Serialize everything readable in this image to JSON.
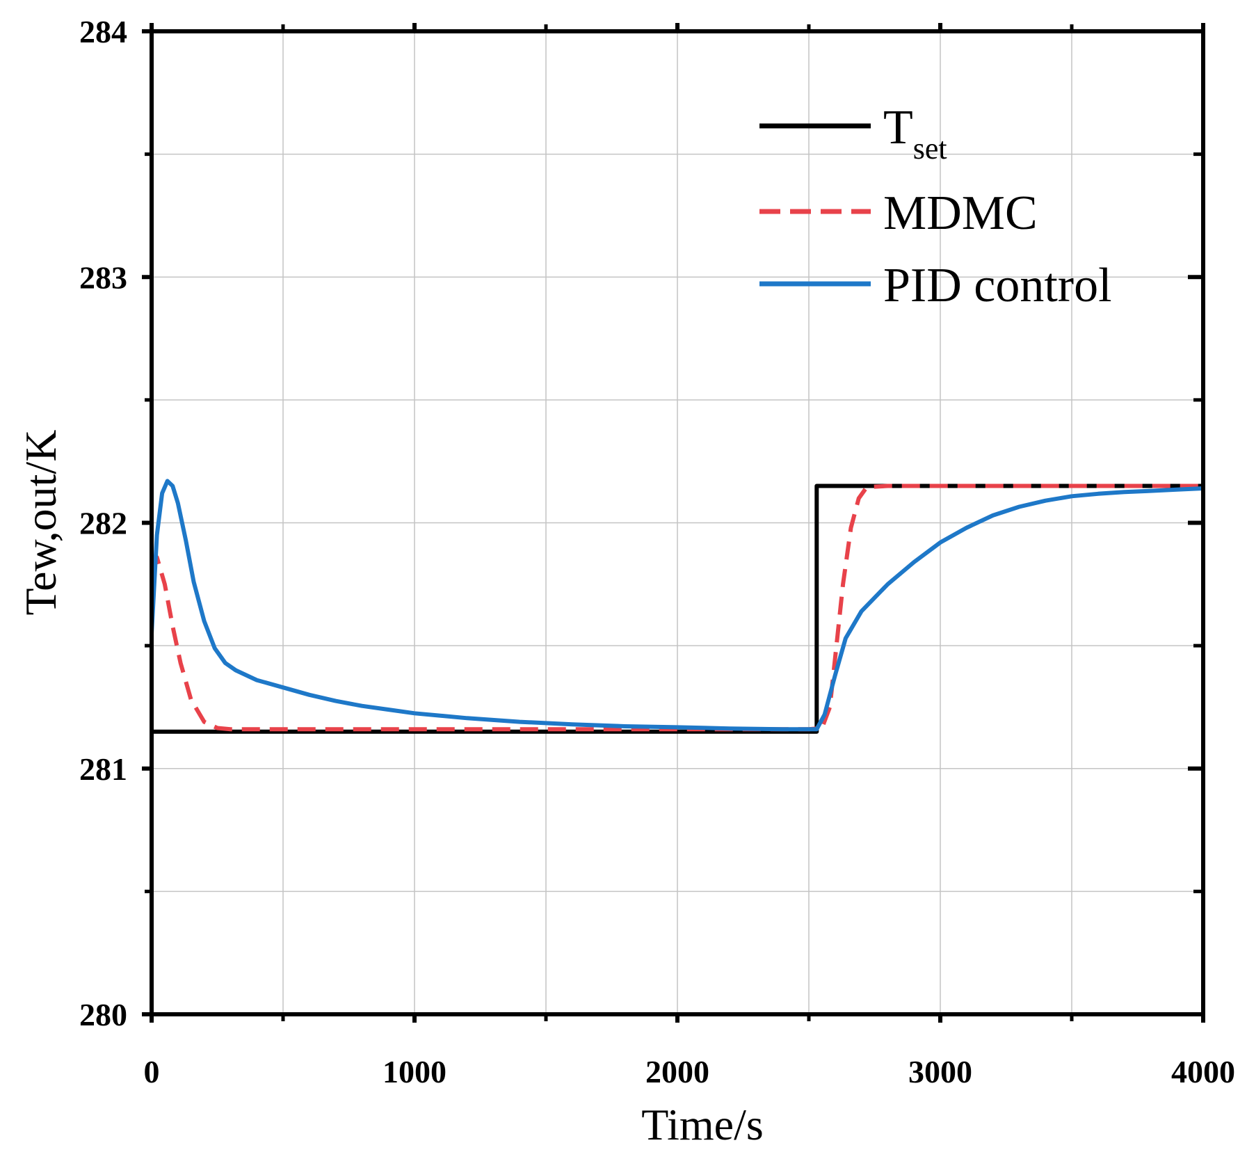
{
  "chart_data": {
    "type": "line",
    "title": "",
    "xlabel": "Time/s",
    "ylabel": "Tew,out/K",
    "xlim": [
      0,
      4000
    ],
    "ylim": [
      280,
      284
    ],
    "xticks": [
      0,
      1000,
      2000,
      3000,
      4000
    ],
    "xticks_minor": [
      500,
      1500,
      2500,
      3500
    ],
    "yticks": [
      280,
      281,
      282,
      283,
      284
    ],
    "yticks_minor": [
      280.5,
      281.5,
      282.5,
      283.5
    ],
    "grid": true,
    "legend_position": "top-right",
    "series": [
      {
        "name": "T",
        "name_sub": "set",
        "color": "#000000",
        "style": "solid",
        "points": [
          [
            0,
            281.15
          ],
          [
            2530,
            281.15
          ],
          [
            2530,
            282.15
          ],
          [
            4000,
            282.15
          ]
        ]
      },
      {
        "name": "MDMC",
        "color": "#e8424a",
        "style": "dashed",
        "points": [
          [
            0,
            281.82
          ],
          [
            20,
            281.86
          ],
          [
            50,
            281.75
          ],
          [
            80,
            281.58
          ],
          [
            110,
            281.43
          ],
          [
            150,
            281.28
          ],
          [
            200,
            281.19
          ],
          [
            250,
            281.165
          ],
          [
            300,
            281.16
          ],
          [
            1000,
            281.16
          ],
          [
            2000,
            281.16
          ],
          [
            2500,
            281.16
          ],
          [
            2550,
            281.165
          ],
          [
            2580,
            281.25
          ],
          [
            2600,
            281.45
          ],
          [
            2630,
            281.75
          ],
          [
            2660,
            281.98
          ],
          [
            2690,
            282.1
          ],
          [
            2720,
            282.145
          ],
          [
            2800,
            282.15
          ],
          [
            4000,
            282.15
          ]
        ]
      },
      {
        "name": "PID control",
        "color": "#1e78c8",
        "style": "solid",
        "points": [
          [
            0,
            281.55
          ],
          [
            20,
            281.95
          ],
          [
            40,
            282.12
          ],
          [
            60,
            282.17
          ],
          [
            80,
            282.15
          ],
          [
            100,
            282.08
          ],
          [
            130,
            281.93
          ],
          [
            160,
            281.76
          ],
          [
            200,
            281.6
          ],
          [
            240,
            281.49
          ],
          [
            280,
            281.43
          ],
          [
            320,
            281.4
          ],
          [
            400,
            281.36
          ],
          [
            500,
            281.33
          ],
          [
            600,
            281.3
          ],
          [
            700,
            281.275
          ],
          [
            800,
            281.255
          ],
          [
            900,
            281.24
          ],
          [
            1000,
            281.225
          ],
          [
            1200,
            281.205
          ],
          [
            1400,
            281.19
          ],
          [
            1600,
            281.18
          ],
          [
            1800,
            281.172
          ],
          [
            2000,
            281.168
          ],
          [
            2200,
            281.163
          ],
          [
            2400,
            281.16
          ],
          [
            2530,
            281.16
          ],
          [
            2560,
            281.22
          ],
          [
            2600,
            281.38
          ],
          [
            2640,
            281.53
          ],
          [
            2700,
            281.64
          ],
          [
            2800,
            281.75
          ],
          [
            2900,
            281.84
          ],
          [
            3000,
            281.92
          ],
          [
            3100,
            281.98
          ],
          [
            3200,
            282.03
          ],
          [
            3300,
            282.065
          ],
          [
            3400,
            282.09
          ],
          [
            3500,
            282.108
          ],
          [
            3600,
            282.118
          ],
          [
            3700,
            282.125
          ],
          [
            3800,
            282.13
          ],
          [
            3900,
            282.135
          ],
          [
            4000,
            282.14
          ]
        ]
      }
    ]
  }
}
